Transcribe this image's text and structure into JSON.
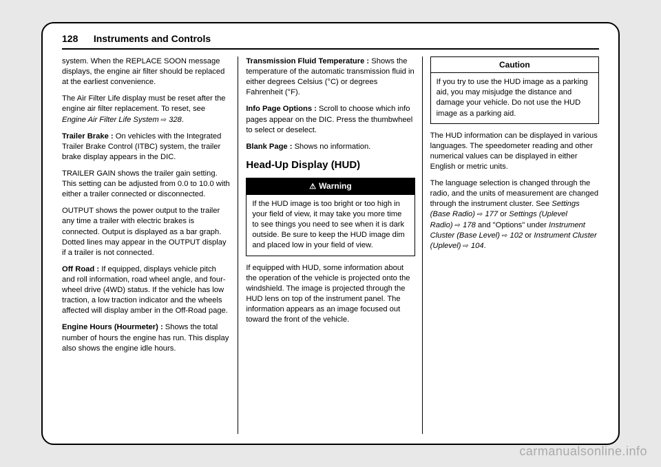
{
  "header": {
    "pagenum": "128",
    "chapter": "Instruments and Controls"
  },
  "col1": {
    "p1": "system. When the REPLACE SOON message displays, the engine air filter should be replaced at the earliest convenience.",
    "p2a": "The Air Filter Life display must be reset after the engine air filter replacement. To reset, see ",
    "p2link": "Engine Air Filter Life System",
    "p2ref": " 328",
    "p2b": ".",
    "p3label": "Trailer Brake : ",
    "p3": "On vehicles with the Integrated Trailer Brake Control (ITBC) system, the trailer brake display appears in the DIC.",
    "p4": "TRAILER GAIN shows the trailer gain setting. This setting can be adjusted from 0.0 to 10.0 with either a trailer connected or disconnected.",
    "p5": "OUTPUT shows the power output to the trailer any time a trailer with electric brakes is connected. Output is displayed as a bar graph. Dotted lines may appear in the OUTPUT display if a trailer is not connected.",
    "p6label": "Off Road : ",
    "p6": "If equipped, displays vehicle pitch and roll information, road wheel angle, and four-wheel drive (4WD) status. If the vehicle has low traction, a low traction indicator and the wheels affected will display amber in the Off-Road page.",
    "p7label": "Engine Hours (Hourmeter) : ",
    "p7": "Shows the total number of hours the engine has run. This display also shows the engine idle hours."
  },
  "col2": {
    "p1label": "Transmission Fluid Temperature : ",
    "p1": "Shows the temperature of the automatic transmission fluid in either degrees Celsius (°C) or degrees Fahrenheit (°F).",
    "p2label": "Info Page Options : ",
    "p2": "Scroll to choose which info pages appear on the DIC. Press the thumbwheel to select or deselect.",
    "p3label": "Blank Page : ",
    "p3": "Shows no information.",
    "h2": "Head-Up Display (HUD)",
    "warn_title": "Warning",
    "warn_body": "If the HUD image is too bright or too high in your field of view, it may take you more time to see things you need to see when it is dark outside. Be sure to keep the HUD image dim and placed low in your field of view.",
    "p4": "If equipped with HUD, some information about the operation of the vehicle is projected onto the windshield. The image is projected through the HUD lens on top of the instrument panel. The information appears as an image focused out toward the front of the vehicle."
  },
  "col3": {
    "caution_title": "Caution",
    "caution_body": "If you try to use the HUD image as a parking aid, you may misjudge the distance and damage your vehicle. Do not use the HUD image as a parking aid.",
    "p1": "The HUD information can be displayed in various languages. The speedometer reading and other numerical values can be displayed in either English or metric units.",
    "p2a": "The language selection is changed through the radio, and the units of measurement are changed through the instrument cluster. See ",
    "link1": "Settings (Base Radio)",
    "ref1": " 177",
    "p2b": " or ",
    "link2": "Settings (Uplevel Radio)",
    "ref2": " 178",
    "p2c": " and \"Options\" under ",
    "link3": "Instrument Cluster (Base Level)",
    "ref3": " 102",
    "p2d": " or ",
    "link4": "Instrument Cluster (Uplevel)",
    "ref4": " 104",
    "p2e": "."
  },
  "watermark": "carmanualsonline.info"
}
